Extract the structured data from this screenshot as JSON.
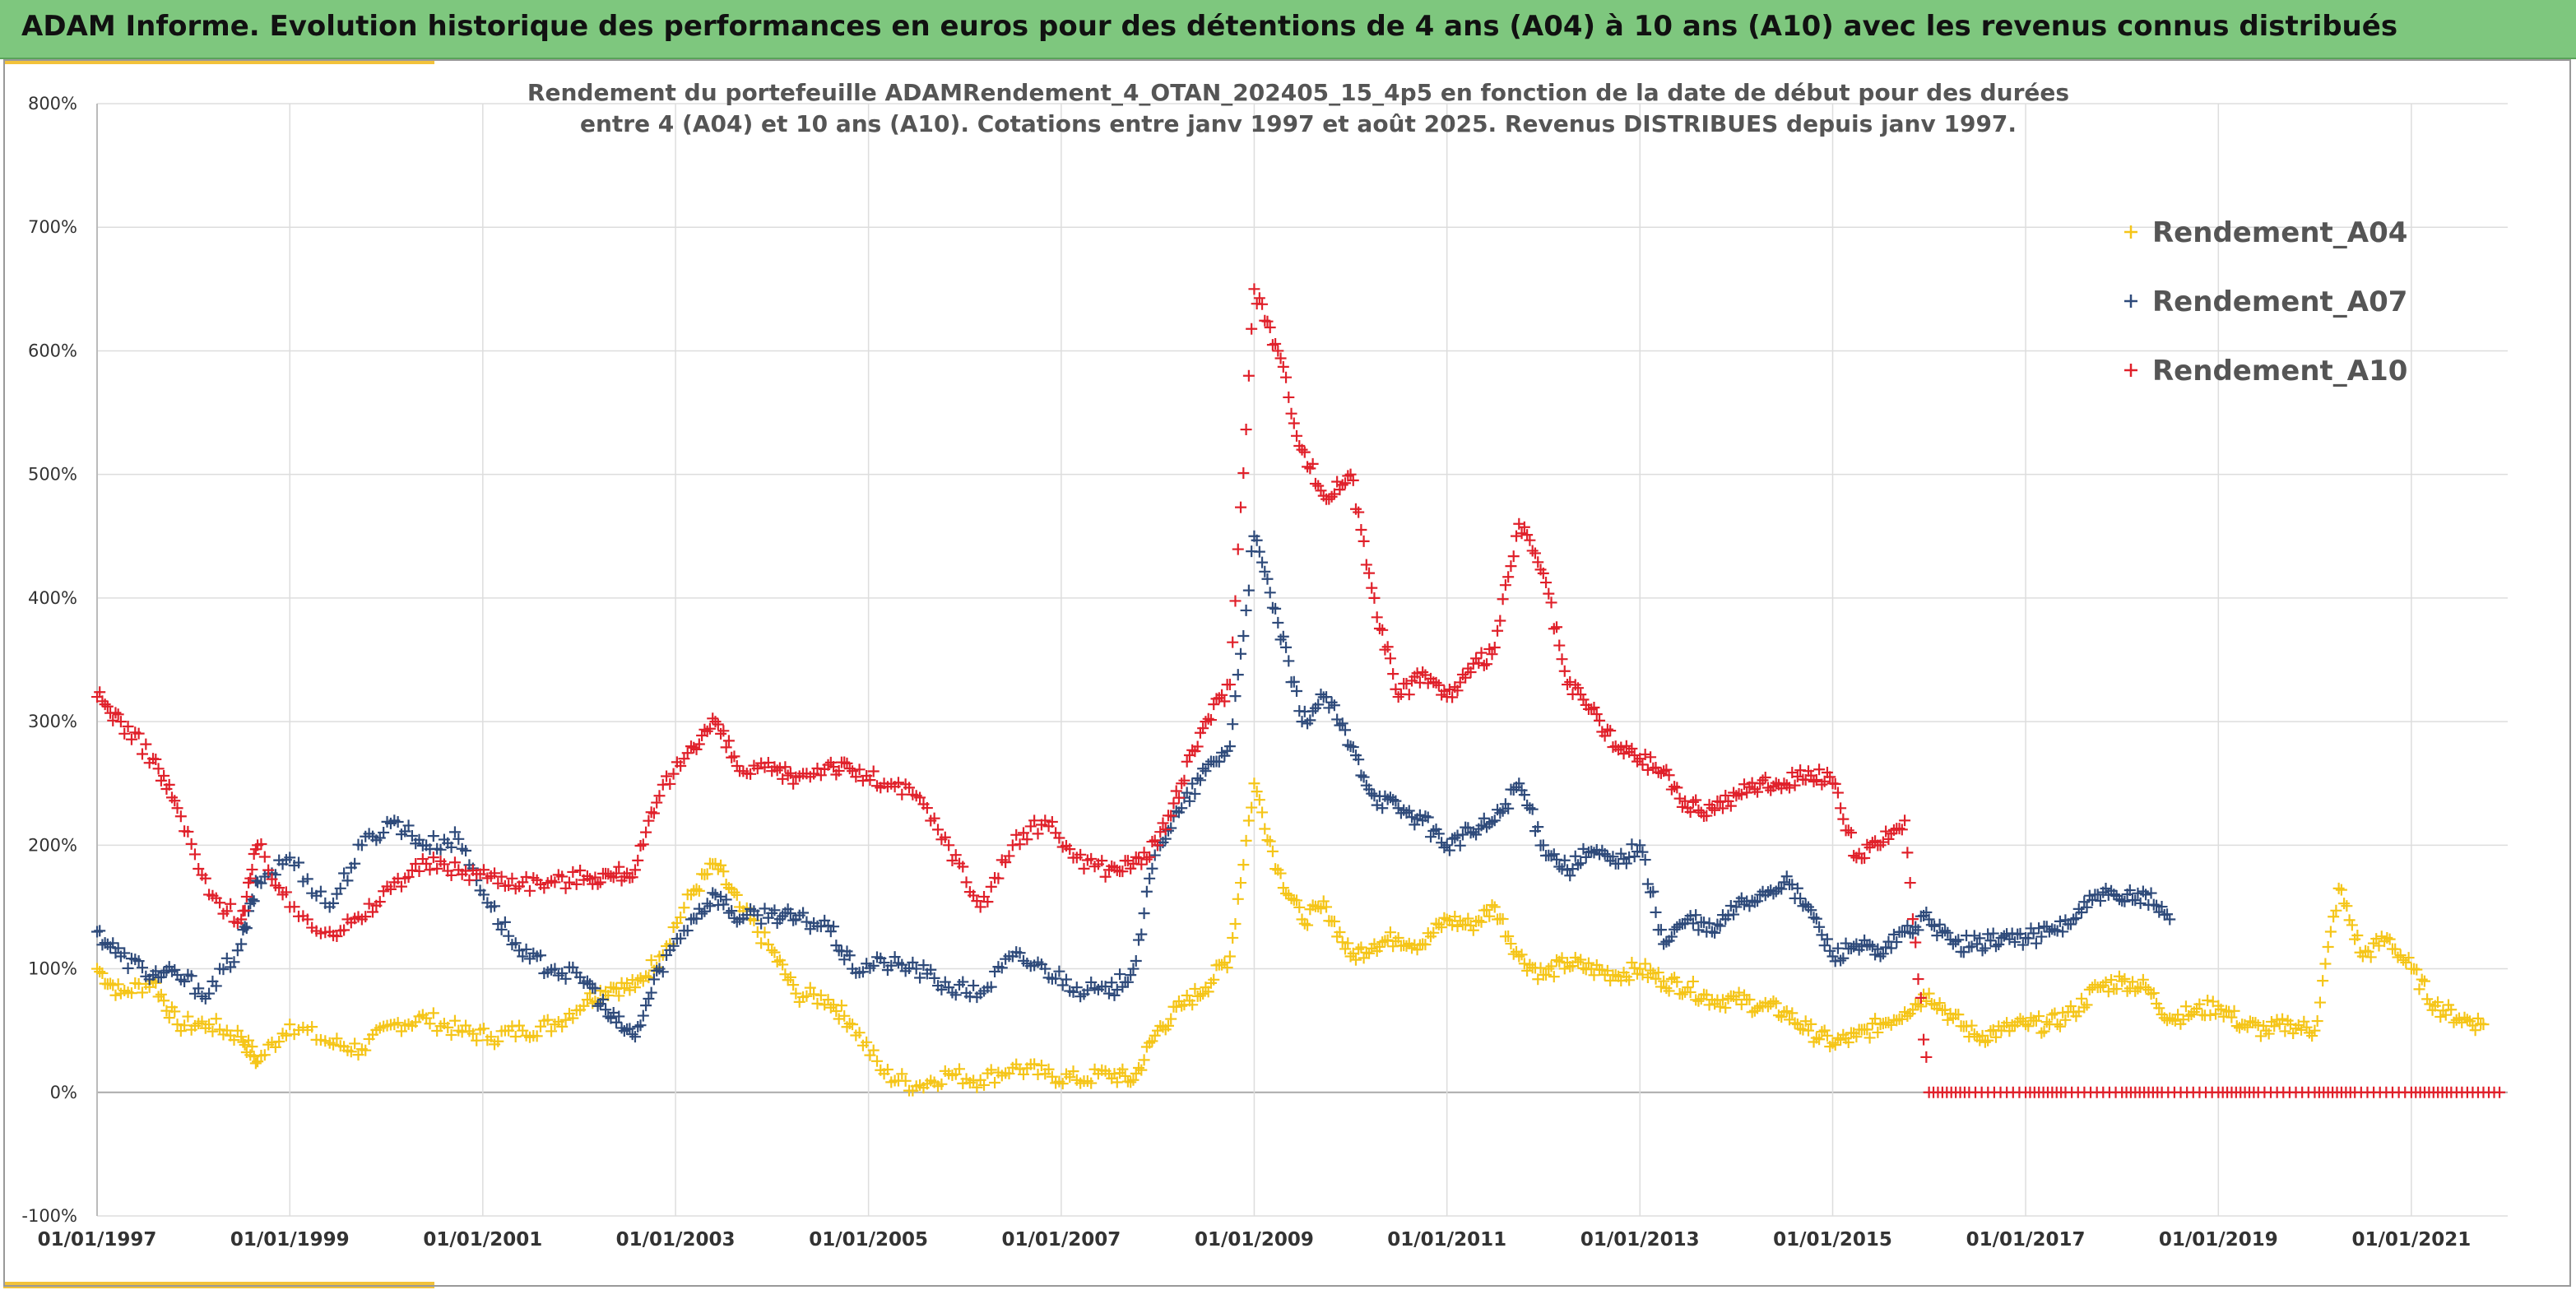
{
  "header": {
    "title": "ADAM Informe. Evolution historique des performances en euros pour des détentions de 4 ans (A04) à 10 ans (A10) avec les revenus connus distribués"
  },
  "colors": {
    "header_bg": "#7ec77e",
    "accent": "#f2c23a",
    "a04": "#f5c518",
    "a07": "#2e4a7a",
    "a10": "#e0202a"
  },
  "chart_data": {
    "type": "scatter",
    "title_lines": [
      "Rendement du portefeuille ADAMRendement_4_OTAN_202405_15_4p5  en fonction de la date de début pour des durées",
      "entre 4 (A04) et 10 ans (A10). Cotations entre janv 1997 et août 2025. Revenus DISTRIBUES depuis janv 1997."
    ],
    "x_axis": {
      "type": "date",
      "min": "1997-01-01",
      "max": "2022-01-01",
      "tick_labels": [
        "01/01/1997",
        "01/01/1999",
        "01/01/2001",
        "01/01/2003",
        "01/01/2005",
        "01/01/2007",
        "01/01/2009",
        "01/01/2011",
        "01/01/2013",
        "01/01/2015",
        "01/01/2017",
        "01/01/2019",
        "01/01/2021"
      ]
    },
    "y_axis": {
      "min": -100,
      "max": 800,
      "step": 100,
      "tick_labels": [
        "-100%",
        "0%",
        "100%",
        "200%",
        "300%",
        "400%",
        "500%",
        "600%",
        "700%",
        "800%"
      ]
    },
    "grid": true,
    "legend_position": "top-right",
    "series": [
      {
        "name": "Rendement_A04",
        "color": "#f5c518",
        "x": [
          "1997-01",
          "1997-04",
          "1997-08",
          "1997-11",
          "1998-03",
          "1998-07",
          "1998-09",
          "1999-01",
          "1999-06",
          "1999-10",
          "2000-02",
          "2000-06",
          "2000-10",
          "2001-02",
          "2001-06",
          "2001-10",
          "2002-02",
          "2002-05",
          "2002-08",
          "2002-11",
          "2003-03",
          "2003-06",
          "2003-09",
          "2004-01",
          "2004-04",
          "2004-08",
          "2004-11",
          "2005-03",
          "2005-07",
          "2005-11",
          "2006-03",
          "2006-07",
          "2006-11",
          "2007-03",
          "2007-07",
          "2007-10",
          "2008-01",
          "2008-04",
          "2008-07",
          "2008-10",
          "2009-01",
          "2009-04",
          "2009-07",
          "2009-10",
          "2010-01",
          "2010-04",
          "2010-07",
          "2010-10",
          "2011-01",
          "2011-04",
          "2011-07",
          "2011-10",
          "2012-01",
          "2012-04",
          "2012-07",
          "2012-10",
          "2013-01",
          "2013-04",
          "2013-07",
          "2013-10",
          "2014-01",
          "2014-04",
          "2014-07",
          "2014-10",
          "2015-01",
          "2015-04",
          "2015-07",
          "2015-10",
          "2016-01",
          "2016-04",
          "2016-07",
          "2016-10",
          "2017-01",
          "2017-04",
          "2017-07",
          "2017-10",
          "2018-01",
          "2018-04",
          "2018-07",
          "2018-10",
          "2019-01",
          "2019-04",
          "2019-07",
          "2019-10",
          "2020-01",
          "2020-04",
          "2020-07",
          "2020-10",
          "2021-01",
          "2021-04",
          "2021-07",
          "2021-10"
        ],
        "y": [
          100,
          80,
          90,
          55,
          55,
          45,
          25,
          55,
          40,
          35,
          55,
          60,
          50,
          45,
          50,
          55,
          75,
          85,
          85,
          110,
          160,
          185,
          150,
          115,
          80,
          75,
          55,
          15,
          5,
          15,
          10,
          20,
          15,
          10,
          15,
          10,
          50,
          70,
          85,
          110,
          250,
          180,
          140,
          150,
          110,
          120,
          125,
          120,
          140,
          135,
          150,
          110,
          95,
          105,
          100,
          95,
          100,
          90,
          85,
          75,
          75,
          70,
          65,
          50,
          40,
          45,
          55,
          65,
          80,
          60,
          45,
          50,
          55,
          55,
          65,
          85,
          90,
          85,
          60,
          65,
          70,
          55,
          50,
          55,
          50,
          165,
          110,
          125,
          100,
          70,
          60,
          55
        ]
      },
      {
        "name": "Rendement_A07",
        "color": "#2e4a7a",
        "x": [
          "1997-01",
          "1997-04",
          "1997-08",
          "1997-11",
          "1998-03",
          "1998-07",
          "1998-09",
          "1999-01",
          "1999-06",
          "1999-10",
          "2000-02",
          "2000-06",
          "2000-10",
          "2001-02",
          "2001-06",
          "2001-10",
          "2002-02",
          "2002-05",
          "2002-08",
          "2002-11",
          "2003-03",
          "2003-06",
          "2003-09",
          "2004-01",
          "2004-04",
          "2004-08",
          "2004-11",
          "2005-03",
          "2005-07",
          "2005-11",
          "2006-03",
          "2006-07",
          "2006-11",
          "2007-03",
          "2007-07",
          "2007-10",
          "2008-01",
          "2008-04",
          "2008-07",
          "2008-10",
          "2009-01",
          "2009-04",
          "2009-07",
          "2009-10",
          "2010-01",
          "2010-04",
          "2010-07",
          "2010-10",
          "2011-01",
          "2011-04",
          "2011-07",
          "2011-10",
          "2012-01",
          "2012-04",
          "2012-07",
          "2012-10",
          "2013-01",
          "2013-04",
          "2013-07",
          "2013-10",
          "2014-01",
          "2014-04",
          "2014-07",
          "2014-10",
          "2015-01",
          "2015-04",
          "2015-07",
          "2015-10",
          "2016-01",
          "2016-04",
          "2016-07",
          "2016-10",
          "2017-01",
          "2017-04",
          "2017-07",
          "2017-10",
          "2018-01",
          "2018-04",
          "2018-07"
        ],
        "y": [
          130,
          110,
          95,
          95,
          80,
          120,
          170,
          190,
          150,
          200,
          220,
          200,
          205,
          150,
          110,
          100,
          90,
          60,
          45,
          100,
          140,
          160,
          140,
          145,
          140,
          135,
          100,
          105,
          100,
          85,
          80,
          110,
          100,
          85,
          80,
          100,
          200,
          230,
          260,
          280,
          450,
          380,
          300,
          320,
          280,
          240,
          230,
          220,
          200,
          210,
          220,
          250,
          200,
          180,
          195,
          185,
          200,
          120,
          140,
          130,
          150,
          160,
          170,
          150,
          110,
          120,
          110,
          130,
          140,
          120,
          120,
          125,
          125,
          130,
          140,
          160,
          155,
          160,
          140
        ]
      },
      {
        "name": "Rendement_A10",
        "color": "#e0202a",
        "x": [
          "1997-01",
          "1997-04",
          "1997-08",
          "1997-11",
          "1998-03",
          "1998-07",
          "1998-09",
          "1999-01",
          "1999-06",
          "1999-10",
          "2000-02",
          "2000-06",
          "2000-10",
          "2001-02",
          "2001-06",
          "2001-10",
          "2002-02",
          "2002-05",
          "2002-08",
          "2002-11",
          "2003-03",
          "2003-06",
          "2003-09",
          "2004-01",
          "2004-04",
          "2004-08",
          "2004-11",
          "2005-03",
          "2005-07",
          "2005-11",
          "2006-03",
          "2006-07",
          "2006-11",
          "2007-03",
          "2007-07",
          "2007-10",
          "2008-01",
          "2008-04",
          "2008-07",
          "2008-10",
          "2009-01",
          "2009-04",
          "2009-07",
          "2009-10",
          "2010-01",
          "2010-04",
          "2010-07",
          "2010-10",
          "2011-01",
          "2011-04",
          "2011-07",
          "2011-10",
          "2012-01",
          "2012-04",
          "2012-07",
          "2012-10",
          "2013-01",
          "2013-04",
          "2013-07",
          "2013-10",
          "2014-01",
          "2014-04",
          "2014-07",
          "2014-10",
          "2015-01",
          "2015-04",
          "2015-07",
          "2015-10",
          "2016-01",
          "2016-06",
          "2017-01",
          "2017-06",
          "2018-01",
          "2018-06",
          "2019-01",
          "2019-06",
          "2020-01",
          "2020-06",
          "2021-01",
          "2021-06",
          "2021-12"
        ],
        "y": [
          320,
          300,
          270,
          230,
          160,
          140,
          200,
          150,
          130,
          140,
          170,
          185,
          180,
          175,
          170,
          170,
          175,
          175,
          180,
          240,
          280,
          300,
          260,
          260,
          255,
          265,
          260,
          250,
          240,
          200,
          150,
          200,
          220,
          190,
          180,
          185,
          200,
          250,
          300,
          330,
          650,
          600,
          520,
          480,
          500,
          400,
          320,
          340,
          320,
          340,
          360,
          460,
          420,
          330,
          310,
          280,
          270,
          260,
          230,
          230,
          240,
          250,
          250,
          260,
          250,
          190,
          200,
          220,
          0,
          0,
          0,
          0,
          0,
          0,
          0,
          0,
          0,
          0,
          0,
          0,
          0
        ]
      }
    ]
  }
}
